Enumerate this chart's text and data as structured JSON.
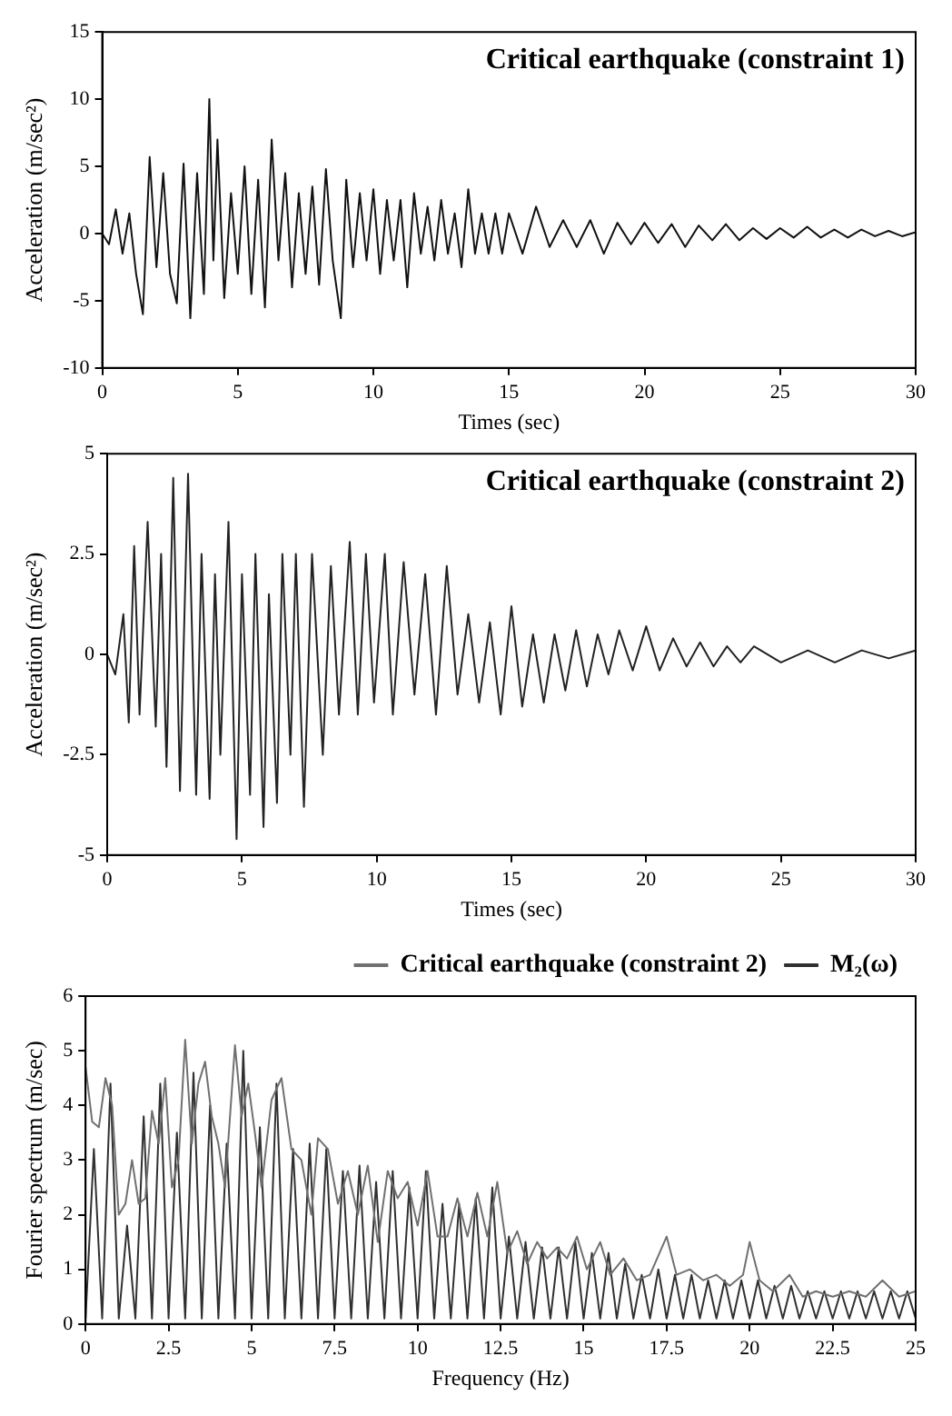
{
  "chart_data": [
    {
      "type": "line",
      "xlabel": "Times (sec)",
      "ylabel": "Acceleration (m/sec²)",
      "annotations": [
        "Critical earthquake (constraint 1)"
      ],
      "xlim": [
        0,
        30
      ],
      "xticks": [
        0,
        5,
        10,
        15,
        20,
        25,
        30
      ],
      "ylim": [
        -10,
        15
      ],
      "yticks": [
        -10,
        -5,
        0,
        5,
        10,
        15
      ],
      "grid": false,
      "series": [
        {
          "color": "#111111",
          "x": [
            0,
            0.25,
            0.5,
            0.75,
            1,
            1.25,
            1.5,
            1.75,
            2,
            2.25,
            2.5,
            2.75,
            3,
            3.25,
            3.5,
            3.75,
            3.95,
            4.1,
            4.25,
            4.5,
            4.75,
            5,
            5.25,
            5.5,
            5.75,
            6,
            6.25,
            6.5,
            6.75,
            7,
            7.25,
            7.5,
            7.75,
            8,
            8.25,
            8.5,
            8.8,
            9,
            9.25,
            9.5,
            9.75,
            10,
            10.25,
            10.5,
            10.75,
            11,
            11.25,
            11.5,
            11.75,
            12,
            12.25,
            12.5,
            12.75,
            13,
            13.25,
            13.5,
            13.75,
            14,
            14.25,
            14.5,
            14.75,
            15,
            15.5,
            16,
            16.5,
            17,
            17.5,
            18,
            18.5,
            19,
            19.5,
            20,
            20.5,
            21,
            21.5,
            22,
            22.5,
            23,
            23.5,
            24,
            24.5,
            25,
            25.5,
            26,
            26.5,
            27,
            27.5,
            28,
            28.5,
            29,
            29.5,
            30
          ],
          "values": [
            0,
            -0.8,
            1.8,
            -1.5,
            1.5,
            -3,
            -6,
            5.7,
            -2.5,
            4.5,
            -3,
            -5.2,
            5.2,
            -6.3,
            4.5,
            -4.5,
            10,
            -2,
            7,
            -4.8,
            3,
            -3,
            5,
            -4.5,
            4,
            -5.5,
            7,
            -2,
            4.5,
            -4,
            3,
            -3,
            3.5,
            -3.8,
            4.8,
            -2,
            -6.3,
            4,
            -2.5,
            3,
            -2,
            3.3,
            -3,
            2.5,
            -2,
            2.5,
            -4,
            3,
            -1.5,
            2,
            -2,
            2.5,
            -1.5,
            1.5,
            -2.5,
            3.3,
            -1.5,
            1.5,
            -1.5,
            1.5,
            -1.5,
            1.5,
            -1.5,
            2,
            -1,
            1,
            -1,
            1,
            -1.5,
            0.8,
            -0.8,
            0.8,
            -0.7,
            0.7,
            -1,
            0.6,
            -0.5,
            0.7,
            -0.5,
            0.4,
            -0.4,
            0.4,
            -0.3,
            0.5,
            -0.3,
            0.3,
            -0.3,
            0.3,
            -0.2,
            0.2,
            -0.2,
            0.1
          ]
        }
      ]
    },
    {
      "type": "line",
      "xlabel": "Times (sec)",
      "ylabel": "Acceleration (m/sec²)",
      "annotations": [
        "Critical earthquake (constraint 2)"
      ],
      "xlim": [
        0,
        30
      ],
      "xticks": [
        0,
        5,
        10,
        15,
        20,
        25,
        30
      ],
      "ylim": [
        -5,
        5
      ],
      "yticks": [
        -5,
        -2.5,
        0,
        2.5,
        5
      ],
      "grid": false,
      "series": [
        {
          "color": "#222222",
          "x": [
            0,
            0.3,
            0.6,
            0.8,
            1,
            1.2,
            1.5,
            1.8,
            2,
            2.2,
            2.45,
            2.7,
            3,
            3.3,
            3.5,
            3.8,
            4,
            4.2,
            4.5,
            4.8,
            5,
            5.3,
            5.5,
            5.8,
            6,
            6.3,
            6.5,
            6.8,
            7,
            7.3,
            7.6,
            8,
            8.3,
            8.6,
            9,
            9.3,
            9.6,
            9.9,
            10.3,
            10.6,
            11,
            11.4,
            11.8,
            12.2,
            12.6,
            13,
            13.4,
            13.8,
            14.2,
            14.6,
            15,
            15.4,
            15.8,
            16.2,
            16.6,
            17,
            17.4,
            17.8,
            18.2,
            18.6,
            19,
            19.5,
            20,
            20.5,
            21,
            21.5,
            22,
            22.5,
            23,
            23.5,
            24,
            25,
            26,
            27,
            28,
            29,
            30
          ],
          "values": [
            0,
            -0.5,
            1,
            -1.7,
            2.7,
            -1.5,
            3.3,
            -1.8,
            2.5,
            -2.8,
            4.4,
            -3.4,
            4.5,
            -3.5,
            2.5,
            -3.6,
            2,
            -2.5,
            3.3,
            -4.6,
            2,
            -3.5,
            2.5,
            -4.3,
            1.5,
            -3.7,
            2.5,
            -2.5,
            2.5,
            -3.8,
            2.5,
            -2.5,
            2.2,
            -1.5,
            2.8,
            -1.5,
            2.5,
            -1.2,
            2.5,
            -1.5,
            2.3,
            -1,
            2,
            -1.5,
            2.2,
            -1,
            1,
            -1.2,
            0.8,
            -1.5,
            1.2,
            -1.3,
            0.5,
            -1.2,
            0.5,
            -0.9,
            0.6,
            -0.8,
            0.5,
            -0.5,
            0.6,
            -0.4,
            0.7,
            -0.4,
            0.4,
            -0.3,
            0.3,
            -0.3,
            0.2,
            -0.2,
            0.2,
            -0.2,
            0.1,
            -0.2,
            0.1,
            -0.1,
            0.1
          ]
        }
      ]
    },
    {
      "type": "line",
      "xlabel": "Frequency (Hz)",
      "ylabel": "Fourier spectrum (m/sec)",
      "xlim": [
        0,
        25
      ],
      "xticks": [
        0,
        2.5,
        5,
        7.5,
        10,
        12.5,
        15,
        17.5,
        20,
        22.5,
        25
      ],
      "ylim": [
        0,
        6
      ],
      "yticks": [
        0,
        1,
        2,
        3,
        4,
        5,
        6
      ],
      "grid": false,
      "legend": "top right",
      "series": [
        {
          "name": "Critical earthquake (constraint 2)",
          "color": "#707070",
          "x": [
            0,
            0.2,
            0.4,
            0.6,
            0.8,
            1,
            1.2,
            1.4,
            1.6,
            1.8,
            2,
            2.2,
            2.4,
            2.6,
            2.8,
            3,
            3.2,
            3.4,
            3.6,
            3.8,
            4,
            4.2,
            4.5,
            4.7,
            4.9,
            5.1,
            5.3,
            5.6,
            5.9,
            6.2,
            6.5,
            6.8,
            7,
            7.3,
            7.6,
            7.9,
            8.2,
            8.5,
            8.8,
            9.1,
            9.4,
            9.7,
            10,
            10.3,
            10.6,
            10.9,
            11.2,
            11.5,
            11.8,
            12.1,
            12.4,
            12.7,
            13,
            13.3,
            13.6,
            13.9,
            14.2,
            14.5,
            14.8,
            15.1,
            15.5,
            15.8,
            16.2,
            16.6,
            17,
            17.5,
            17.8,
            18.2,
            18.6,
            19,
            19.4,
            19.8,
            20,
            20.3,
            20.7,
            21.2,
            21.6,
            22,
            22.5,
            23,
            23.5,
            24,
            24.5,
            25
          ],
          "values": [
            4.7,
            3.7,
            3.6,
            4.5,
            4,
            2,
            2.2,
            3,
            2.2,
            2.3,
            3.9,
            3.3,
            4.5,
            2.5,
            3,
            5.2,
            3.3,
            4.4,
            4.8,
            3.8,
            3.3,
            2.5,
            5.1,
            3.8,
            4.4,
            3.5,
            2.5,
            4.1,
            4.5,
            3.2,
            3,
            2,
            3.4,
            3.2,
            2.2,
            2.8,
            2,
            2.9,
            1.5,
            2.8,
            2.3,
            2.6,
            1.8,
            2.8,
            1.6,
            1.6,
            2.3,
            1.6,
            2.4,
            1.6,
            2.6,
            1.3,
            1.7,
            1.1,
            1.5,
            1.2,
            1.4,
            1.2,
            1.6,
            1,
            1.5,
            0.9,
            1.2,
            0.8,
            0.9,
            1.6,
            0.9,
            1,
            0.8,
            0.9,
            0.7,
            0.9,
            1.5,
            0.8,
            0.6,
            0.9,
            0.5,
            0.6,
            0.5,
            0.6,
            0.5,
            0.8,
            0.5,
            0.6
          ]
        },
        {
          "name": "M₂(ω)",
          "color": "#303030",
          "x": [
            0,
            0.25,
            0.5,
            0.75,
            1,
            1.25,
            1.5,
            1.75,
            2,
            2.25,
            2.5,
            2.75,
            3,
            3.25,
            3.5,
            3.75,
            4,
            4.25,
            4.5,
            4.75,
            5,
            5.25,
            5.5,
            5.75,
            6,
            6.25,
            6.5,
            6.75,
            7,
            7.25,
            7.5,
            7.75,
            8,
            8.25,
            8.5,
            8.75,
            9,
            9.25,
            9.5,
            9.75,
            10,
            10.25,
            10.5,
            10.75,
            11,
            11.25,
            11.5,
            11.75,
            12,
            12.25,
            12.5,
            12.75,
            13,
            13.25,
            13.5,
            13.75,
            14,
            14.25,
            14.5,
            14.75,
            15,
            15.25,
            15.5,
            15.75,
            16,
            16.25,
            16.5,
            16.75,
            17,
            17.25,
            17.5,
            17.75,
            18,
            18.25,
            18.5,
            18.75,
            19,
            19.25,
            19.5,
            19.75,
            20,
            20.25,
            20.5,
            20.75,
            21,
            21.25,
            21.5,
            21.75,
            22,
            22.25,
            22.5,
            22.75,
            23,
            23.25,
            23.5,
            23.75,
            24,
            24.25,
            24.5,
            24.75,
            25
          ],
          "values": [
            0.1,
            3.2,
            0.1,
            4.4,
            0.1,
            1.8,
            0.1,
            3.8,
            0.1,
            4.4,
            0.1,
            3.5,
            0.1,
            4.6,
            0.1,
            4,
            0.1,
            3.3,
            0.1,
            5,
            0.1,
            3.6,
            0.1,
            4.4,
            0.1,
            3.2,
            0.1,
            3.3,
            0.1,
            3.2,
            0.1,
            2.8,
            0.1,
            2.9,
            0.1,
            2.6,
            0.1,
            2.8,
            0.1,
            2.5,
            0.1,
            2.8,
            0.1,
            2.2,
            0.1,
            2.2,
            0.1,
            2.3,
            0.1,
            2.5,
            0.1,
            1.6,
            0.1,
            1.5,
            0.1,
            1.4,
            0.1,
            1.4,
            0.1,
            1.5,
            0.1,
            1.3,
            0.1,
            1.3,
            0.1,
            1.1,
            0.1,
            0.9,
            0.1,
            1,
            0.1,
            0.9,
            0.1,
            0.9,
            0.1,
            0.8,
            0.1,
            0.8,
            0.1,
            0.8,
            0.1,
            0.8,
            0.1,
            0.7,
            0.1,
            0.7,
            0.1,
            0.6,
            0.1,
            0.6,
            0.1,
            0.6,
            0.1,
            0.6,
            0.1,
            0.6,
            0.1,
            0.6,
            0.1,
            0.6,
            0.1
          ]
        }
      ]
    }
  ]
}
